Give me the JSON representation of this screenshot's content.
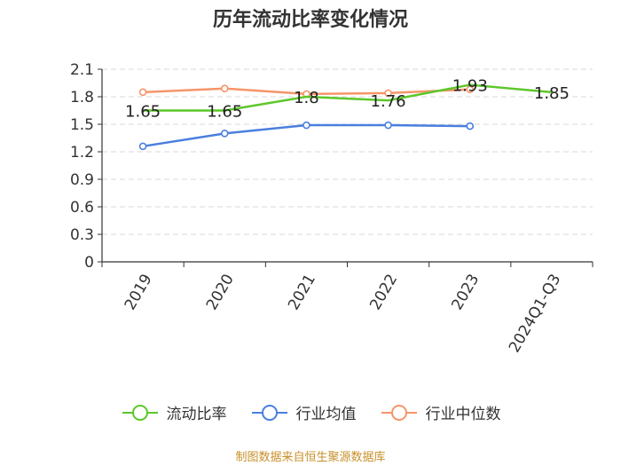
{
  "chart_data": {
    "type": "line",
    "title": "历年流动比率变化情况",
    "categories": [
      "2019",
      "2020",
      "2021",
      "2022",
      "2023",
      "2024Q1-Q3"
    ],
    "ylim": [
      0,
      2.1
    ],
    "yticks": [
      "0",
      "0.3",
      "0.6",
      "0.9",
      "1.2",
      "1.5",
      "1.8",
      "2.1"
    ],
    "grid": true,
    "legend_position": "bottom",
    "series": [
      {
        "name": "流动比率",
        "color": "#5dc72a",
        "values": [
          1.65,
          1.65,
          1.8,
          1.76,
          1.93,
          1.85
        ],
        "labels": [
          "1.65",
          "1.65",
          "1.8",
          "1.76",
          "1.93",
          "1.85"
        ]
      },
      {
        "name": "行业均值",
        "color": "#4a7fdf",
        "values": [
          1.26,
          1.4,
          1.49,
          1.49,
          1.48,
          null
        ]
      },
      {
        "name": "行业中位数",
        "color": "#f6956a",
        "values": [
          1.85,
          1.89,
          1.83,
          1.84,
          1.88,
          null
        ]
      }
    ]
  },
  "source": "制图数据来自恒生聚源数据库"
}
